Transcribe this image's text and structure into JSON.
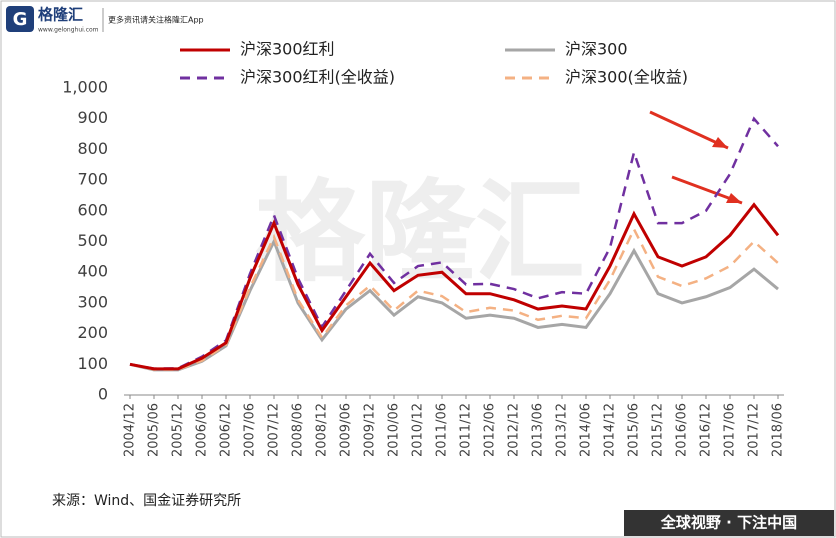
{
  "header": {
    "brand": "格隆汇",
    "site": "www.gelonghui.com",
    "slogan": "更多资讯请关注格隆汇App"
  },
  "watermark": "格隆汇",
  "footer": {
    "source": "来源：Wind、国金证券研究所",
    "motto": "全球视野 · 下注中国"
  },
  "chart_data": {
    "type": "line",
    "categories": [
      "2004/12",
      "2005/06",
      "2005/12",
      "2006/06",
      "2006/12",
      "2007/06",
      "2007/12",
      "2008/06",
      "2008/12",
      "2009/06",
      "2009/12",
      "2010/06",
      "2010/12",
      "2011/06",
      "2011/12",
      "2012/06",
      "2012/12",
      "2013/06",
      "2013/12",
      "2014/06",
      "2014/12",
      "2015/06",
      "2015/12",
      "2016/06",
      "2016/12",
      "2017/06",
      "2017/12",
      "2018/06"
    ],
    "series": [
      {
        "name": "沪深300红利",
        "color": "#c00000",
        "dash": false,
        "values": [
          100,
          85,
          85,
          120,
          170,
          380,
          560,
          360,
          210,
          320,
          430,
          340,
          390,
          400,
          330,
          330,
          310,
          280,
          290,
          280,
          420,
          590,
          450,
          420,
          450,
          520,
          620,
          520
        ]
      },
      {
        "name": "沪深300",
        "color": "#a6a6a6",
        "dash": false,
        "values": [
          100,
          82,
          82,
          110,
          160,
          340,
          500,
          300,
          180,
          280,
          340,
          260,
          320,
          300,
          250,
          260,
          250,
          220,
          230,
          220,
          330,
          470,
          330,
          300,
          320,
          350,
          410,
          345
        ]
      },
      {
        "name": "沪深300红利(全收益)",
        "color": "#7030a0",
        "dash": true,
        "values": [
          100,
          86,
          87,
          125,
          178,
          395,
          585,
          380,
          222,
          340,
          460,
          365,
          420,
          432,
          360,
          362,
          345,
          315,
          335,
          330,
          480,
          790,
          560,
          560,
          600,
          720,
          900,
          810
        ]
      },
      {
        "name": "沪深300(全收益)",
        "color": "#f4b183",
        "dash": true,
        "values": [
          100,
          83,
          83,
          112,
          163,
          350,
          515,
          310,
          187,
          292,
          356,
          275,
          340,
          322,
          270,
          284,
          275,
          245,
          258,
          250,
          375,
          540,
          385,
          355,
          380,
          420,
          500,
          430
        ]
      }
    ],
    "ylim": [
      0,
      1000
    ],
    "yticks": [
      0,
      100,
      200,
      300,
      400,
      500,
      600,
      700,
      800,
      900,
      {
        "value": 1000,
        "label": "1,000"
      }
    ],
    "grid": false
  }
}
